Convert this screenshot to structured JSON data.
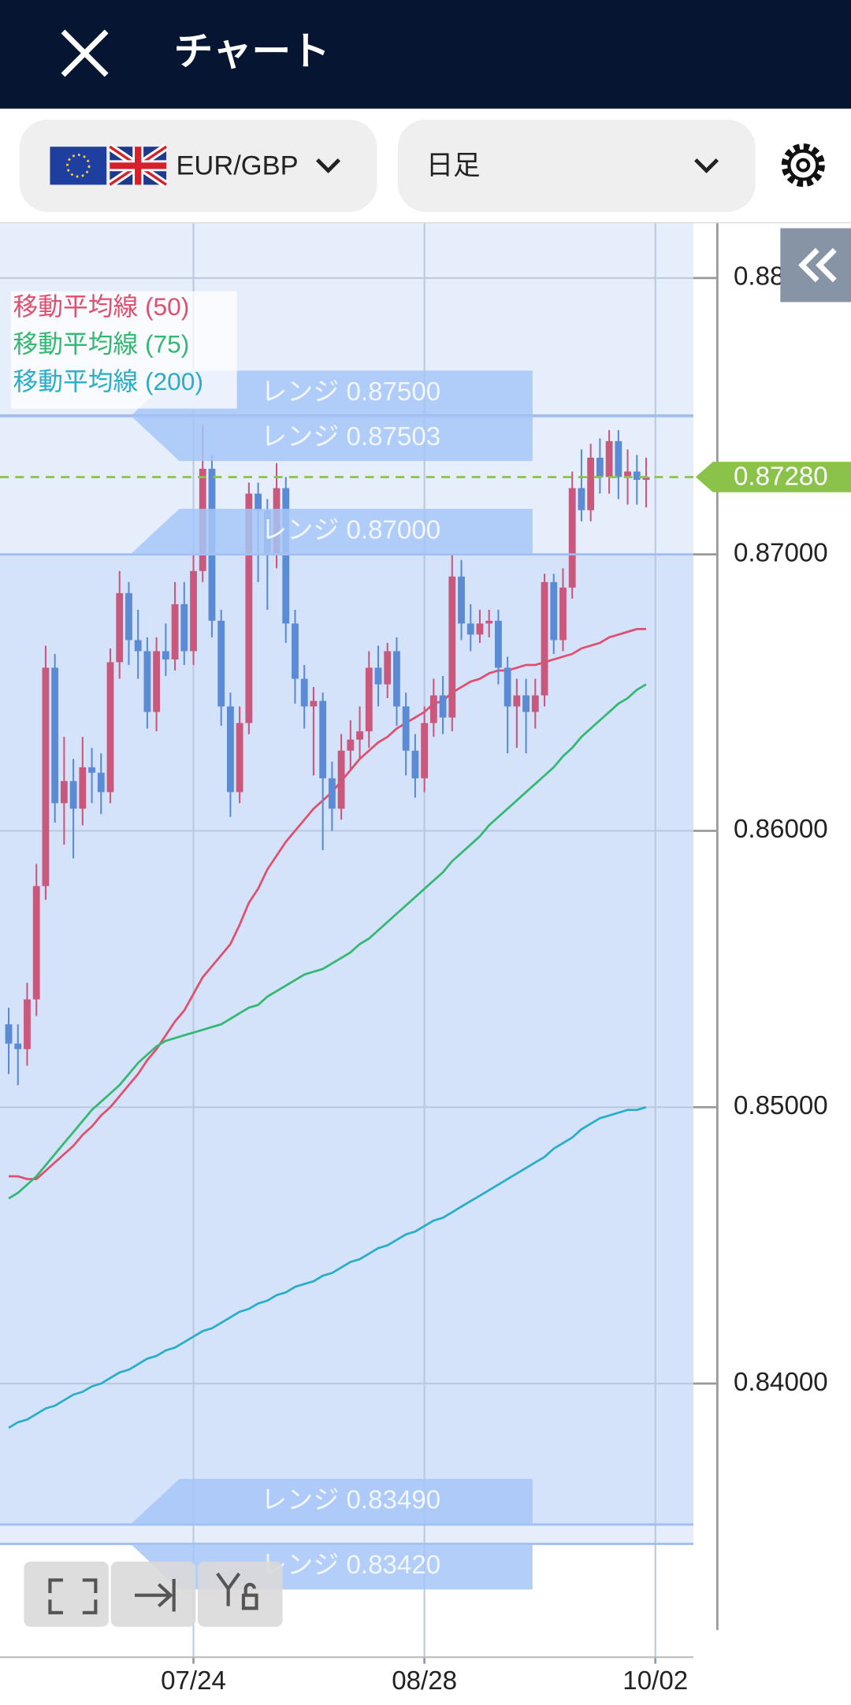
{
  "header": {
    "title": "チャート"
  },
  "toolbar": {
    "pair": "EUR/GBP",
    "timeframe": "日足"
  },
  "chart_data": {
    "type": "candlestick",
    "categories": [
      null,
      null,
      null,
      null,
      null,
      null,
      null,
      null,
      null,
      null,
      null,
      null,
      null,
      null,
      null,
      null,
      null,
      null,
      null,
      null,
      "07/24",
      null,
      null,
      null,
      null,
      null,
      null,
      null,
      null,
      null,
      null,
      null,
      null,
      null,
      null,
      null,
      null,
      null,
      null,
      null,
      null,
      null,
      null,
      null,
      null,
      "08/28",
      null,
      null,
      null,
      null,
      null,
      null,
      null,
      null,
      null,
      null,
      null,
      null,
      null,
      null,
      null,
      null,
      null,
      null,
      null,
      null,
      null,
      null,
      null,
      null,
      "10/02"
    ],
    "open": [
      0.853,
      0.8523,
      0.8521,
      0.8539,
      0.858,
      0.8659,
      0.861,
      0.8618,
      0.8608,
      0.8623,
      0.8621,
      0.8614,
      0.8661,
      0.8686,
      0.8669,
      0.8665,
      0.8643,
      0.8665,
      0.8662,
      0.8682,
      0.8665,
      0.8694,
      0.8731,
      0.8676,
      0.8645,
      0.8614,
      0.8639,
      0.8722,
      0.8716,
      0.87,
      0.8724,
      0.8675,
      0.8655,
      0.8645,
      0.8647,
      0.8619,
      0.8608,
      0.8629,
      0.8633,
      0.8636,
      0.8659,
      0.8653,
      0.8665,
      0.8645,
      0.8629,
      0.8619,
      0.8639,
      0.8649,
      0.8641,
      0.8692,
      0.8675,
      0.8671,
      0.8675,
      0.8676,
      0.8659,
      0.8645,
      0.8649,
      0.8643,
      0.8649,
      0.869,
      0.8669,
      0.8688,
      0.8724,
      0.8716,
      0.8735,
      0.8728,
      0.8741,
      0.8728,
      0.873,
      0.8727,
      null
    ],
    "high": [
      0.8536,
      0.853,
      0.8545,
      0.8588,
      0.8667,
      0.8664,
      0.8634,
      0.8626,
      0.8634,
      0.863,
      0.8628,
      0.8666,
      0.8694,
      0.869,
      0.868,
      0.867,
      0.867,
      0.8675,
      0.869,
      0.869,
      0.87,
      0.8747,
      0.8736,
      0.868,
      0.865,
      0.8645,
      0.8726,
      0.8726,
      0.872,
      0.8733,
      0.8728,
      0.868,
      0.866,
      0.8652,
      0.865,
      0.8625,
      0.8635,
      0.864,
      0.8645,
      0.8665,
      0.8667,
      0.8668,
      0.867,
      0.865,
      0.8635,
      0.8645,
      0.8655,
      0.8656,
      0.87,
      0.8698,
      0.8682,
      0.868,
      0.868,
      0.868,
      0.8663,
      0.8655,
      0.8655,
      0.8655,
      0.8693,
      0.8693,
      0.8695,
      0.873,
      0.8738,
      0.874,
      0.8742,
      0.8745,
      0.8745,
      0.8738,
      0.8736,
      0.8735,
      null
    ],
    "low": [
      0.8512,
      0.8508,
      0.8515,
      0.8533,
      0.8575,
      0.8603,
      0.8595,
      0.859,
      0.8602,
      0.861,
      0.8606,
      0.861,
      0.8655,
      0.866,
      0.8655,
      0.8637,
      0.8636,
      0.8656,
      0.8658,
      0.866,
      0.866,
      0.869,
      0.867,
      0.8638,
      0.8605,
      0.861,
      0.8635,
      0.869,
      0.868,
      0.8695,
      0.8668,
      0.8646,
      0.8637,
      0.862,
      0.8593,
      0.86,
      0.8604,
      0.8622,
      0.8626,
      0.863,
      0.8645,
      0.8648,
      0.8638,
      0.862,
      0.8612,
      0.8614,
      0.8634,
      0.8635,
      0.8636,
      0.8669,
      0.8665,
      0.8668,
      0.867,
      0.8653,
      0.8628,
      0.863,
      0.8628,
      0.8637,
      0.8645,
      0.8664,
      0.8665,
      0.8684,
      0.8712,
      0.8712,
      0.8722,
      0.8722,
      0.872,
      0.8718,
      0.8718,
      0.8717,
      null
    ],
    "close": [
      0.8523,
      0.8521,
      0.8539,
      0.858,
      0.8659,
      0.861,
      0.8618,
      0.8608,
      0.8623,
      0.8621,
      0.8614,
      0.8661,
      0.8686,
      0.8669,
      0.8665,
      0.8643,
      0.8665,
      0.8662,
      0.8682,
      0.8665,
      0.8694,
      0.8731,
      0.8676,
      0.8645,
      0.8614,
      0.8639,
      0.8722,
      0.8716,
      0.87,
      0.8724,
      0.8675,
      0.8655,
      0.8645,
      0.8647,
      0.8619,
      0.8608,
      0.8629,
      0.8633,
      0.8636,
      0.8659,
      0.8653,
      0.8665,
      0.8645,
      0.8629,
      0.8619,
      0.8639,
      0.8649,
      0.8641,
      0.8692,
      0.8675,
      0.8671,
      0.8675,
      0.8676,
      0.8659,
      0.8645,
      0.8649,
      0.8643,
      0.8649,
      0.869,
      0.8669,
      0.8688,
      0.8724,
      0.8716,
      0.8735,
      0.8728,
      0.8741,
      0.8728,
      0.873,
      0.8727,
      0.8728,
      null
    ],
    "up_color": "#c9587c",
    "down_color": "#5b8bd4",
    "series": [
      {
        "name": "移動平均線 (50)",
        "color": "#e0506e",
        "values": [
          0.8475,
          0.8475,
          0.8474,
          0.8474,
          0.8477,
          0.848,
          0.8483,
          0.8486,
          0.849,
          0.8493,
          0.8497,
          0.85,
          0.8504,
          0.8508,
          0.8512,
          0.8517,
          0.8521,
          0.8526,
          0.8531,
          0.8535,
          0.8541,
          0.8547,
          0.8551,
          0.8555,
          0.8559,
          0.8566,
          0.8574,
          0.8579,
          0.8586,
          0.8591,
          0.8596,
          0.86,
          0.8604,
          0.8608,
          0.8611,
          0.8614,
          0.8618,
          0.8622,
          0.8626,
          0.8629,
          0.8632,
          0.8634,
          0.8637,
          0.8639,
          0.8641,
          0.8643,
          0.8646,
          0.8647,
          0.865,
          0.8652,
          0.8654,
          0.8655,
          0.8657,
          0.8658,
          0.8658,
          0.8659,
          0.866,
          0.866,
          0.8661,
          0.8662,
          0.8663,
          0.8664,
          0.8666,
          0.8667,
          0.8668,
          0.867,
          0.8671,
          0.8672,
          0.8673,
          0.8673,
          null
        ]
      },
      {
        "name": "移動平均線 (75)",
        "color": "#34b872",
        "values": [
          0.8467,
          0.8469,
          0.8472,
          0.8475,
          0.8479,
          0.8483,
          0.8487,
          0.8491,
          0.8495,
          0.8499,
          0.8502,
          0.8505,
          0.8508,
          0.8512,
          0.8516,
          0.8519,
          0.8522,
          0.8524,
          0.8525,
          0.8526,
          0.8527,
          0.8528,
          0.8529,
          0.853,
          0.8532,
          0.8534,
          0.8536,
          0.8537,
          0.854,
          0.8542,
          0.8544,
          0.8546,
          0.8548,
          0.8549,
          0.855,
          0.8552,
          0.8554,
          0.8556,
          0.8559,
          0.8561,
          0.8564,
          0.8567,
          0.857,
          0.8573,
          0.8576,
          0.8579,
          0.8582,
          0.8585,
          0.8589,
          0.8592,
          0.8595,
          0.8598,
          0.8602,
          0.8605,
          0.8608,
          0.8611,
          0.8614,
          0.8617,
          0.862,
          0.8623,
          0.8627,
          0.863,
          0.8634,
          0.8637,
          0.864,
          0.8643,
          0.8646,
          0.8648,
          0.8651,
          0.8653,
          null
        ]
      },
      {
        "name": "移動平均線 (200)",
        "color": "#2aaec8",
        "values": [
          0.8384,
          0.8386,
          0.8387,
          0.8389,
          0.8391,
          0.8392,
          0.8394,
          0.8396,
          0.8397,
          0.8399,
          0.84,
          0.8402,
          0.8404,
          0.8405,
          0.8407,
          0.8409,
          0.841,
          0.8412,
          0.8413,
          0.8415,
          0.8417,
          0.8419,
          0.842,
          0.8422,
          0.8424,
          0.8426,
          0.8427,
          0.8429,
          0.843,
          0.8432,
          0.8433,
          0.8435,
          0.8436,
          0.8437,
          0.8439,
          0.844,
          0.8442,
          0.8444,
          0.8445,
          0.8447,
          0.8449,
          0.845,
          0.8452,
          0.8454,
          0.8455,
          0.8457,
          0.8459,
          0.846,
          0.8462,
          0.8464,
          0.8466,
          0.8468,
          0.847,
          0.8472,
          0.8474,
          0.8476,
          0.8478,
          0.848,
          0.8482,
          0.8485,
          0.8487,
          0.8489,
          0.8492,
          0.8494,
          0.8496,
          0.8497,
          0.8498,
          0.8499,
          0.8499,
          0.85,
          null
        ]
      }
    ],
    "ylim": [
      0.8301,
      0.882
    ],
    "yticks": [
      {
        "value": 0.84,
        "label": "0.84000"
      },
      {
        "value": 0.85,
        "label": "0.85000"
      },
      {
        "value": 0.86,
        "label": "0.86000"
      },
      {
        "value": 0.87,
        "label": "0.87000"
      },
      {
        "value": 0.88,
        "label": "0.88000"
      }
    ],
    "grid": true,
    "ranges": [
      {
        "label": "レンジ 0.87500",
        "value": 0.875
      },
      {
        "label": "レンジ 0.87503",
        "value": 0.87503
      },
      {
        "label": "レンジ 0.87000",
        "value": 0.87
      },
      {
        "label": "レンジ 0.83490",
        "value": 0.8349
      },
      {
        "label": "レンジ 0.83420",
        "value": 0.8342
      }
    ],
    "current_price": {
      "value": 0.8728,
      "label": "0.87280",
      "color": "#8bc34a"
    }
  }
}
